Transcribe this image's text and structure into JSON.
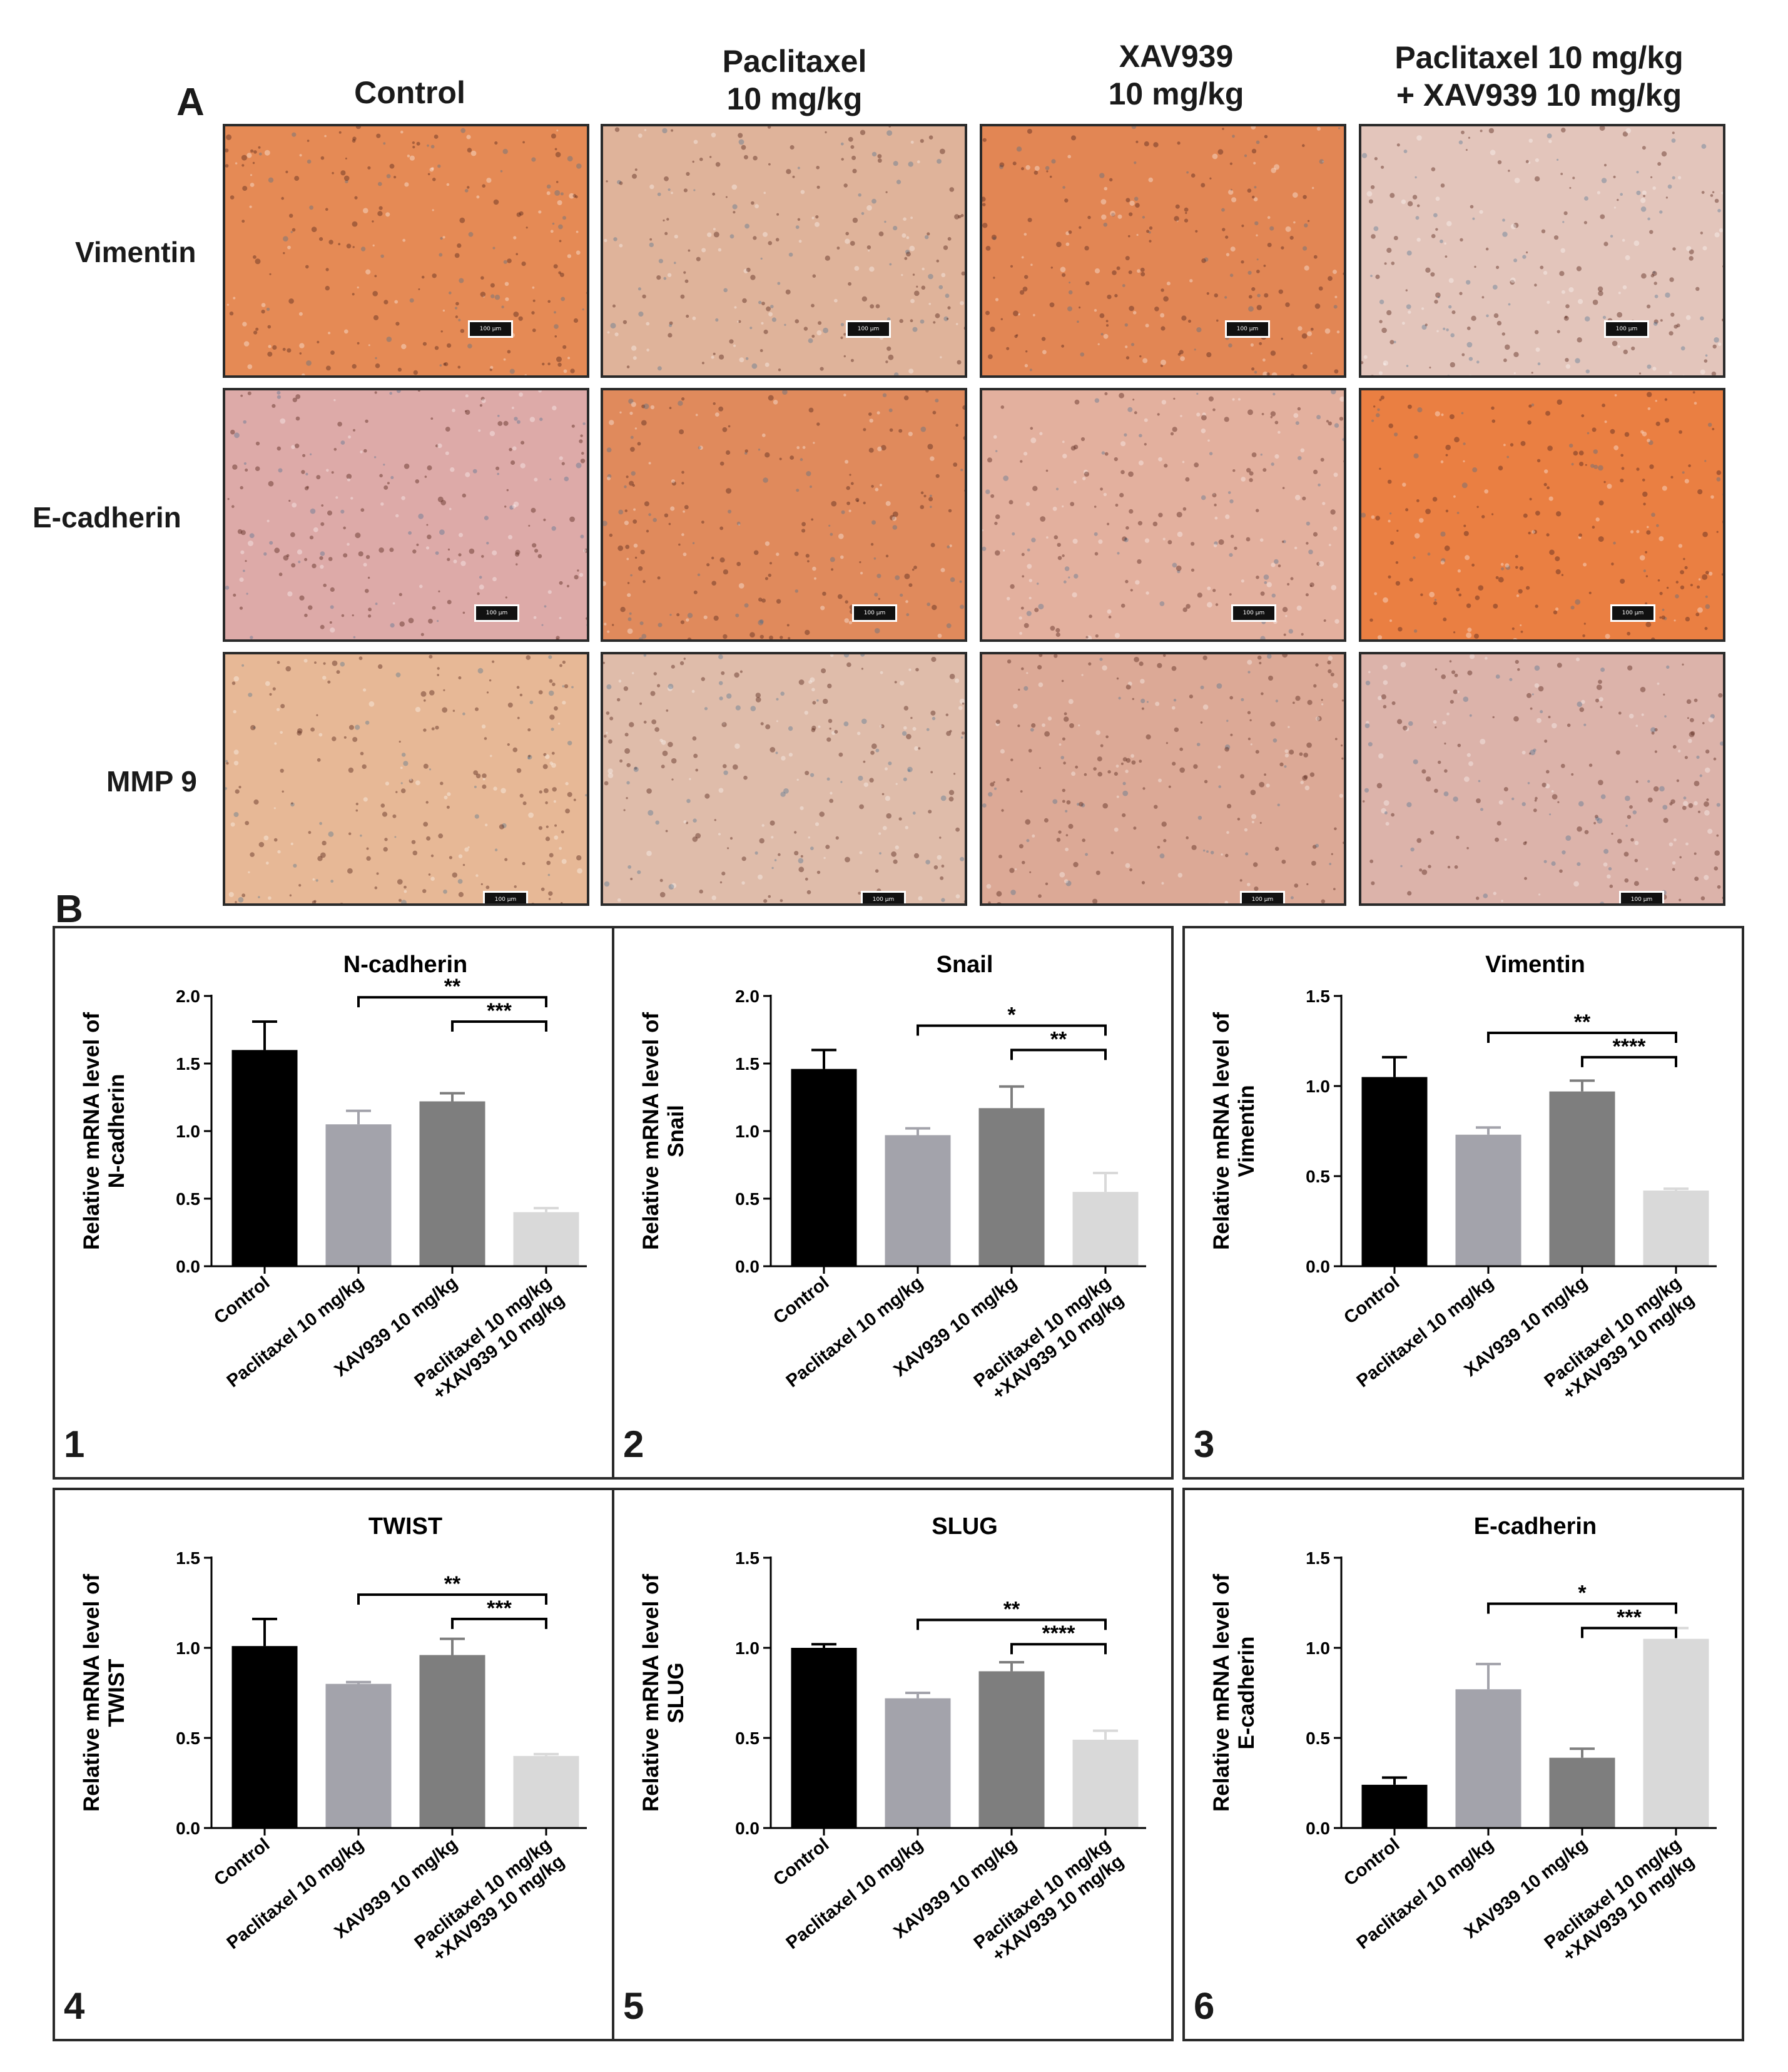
{
  "panel_a": {
    "letter": "A",
    "columns": [
      "Control",
      "Paclitaxel\n10 mg/kg",
      "XAV939\n10 mg/kg",
      "Paclitaxel 10 mg/kg\n+ XAV939 10 mg/kg"
    ],
    "rows": [
      "Vimentin",
      "E-cadherin",
      "MMP 9"
    ],
    "scale_label": "100 μm",
    "stain_colors": {
      "Vimentin": [
        "#e58a55",
        "#dfb39a",
        "#e28654",
        "#e3c5bb"
      ],
      "E-cadherin": [
        "#ddaaa8",
        "#e08a5c",
        "#e3b09e",
        "#ea7f42"
      ],
      "MMP 9": [
        "#e7b896",
        "#dfbcaa",
        "#dca996",
        "#dcb3aa"
      ]
    }
  },
  "panel_b": {
    "letter": "B"
  },
  "chart_data": [
    {
      "type": "bar",
      "number": "1",
      "title": "N-cadherin",
      "ylabel": "Relative mRNA level of\nN-cadherin",
      "categories": [
        "Control",
        "Paclitaxel 10 mg/kg",
        "XAV939 10 mg/kg",
        "Paclitaxel 10 mg/kg\n+XAV939 10 mg/kg"
      ],
      "values": [
        1.6,
        1.05,
        1.22,
        0.4
      ],
      "errors": [
        0.21,
        0.1,
        0.06,
        0.03
      ],
      "ylim": [
        0,
        2.0
      ],
      "yticks": [
        "0.0",
        "0.5",
        "1.0",
        "1.5",
        "2.0"
      ],
      "significance": [
        {
          "from": 1,
          "to": 3,
          "label": "**"
        },
        {
          "from": 2,
          "to": 3,
          "label": "***"
        }
      ]
    },
    {
      "type": "bar",
      "number": "2",
      "title": "Snail",
      "ylabel": "Relative mRNA level of\nSnail",
      "categories": [
        "Control",
        "Paclitaxel 10 mg/kg",
        "XAV939 10 mg/kg",
        "Paclitaxel 10 mg/kg\n+XAV939 10 mg/kg"
      ],
      "values": [
        1.46,
        0.97,
        1.17,
        0.55
      ],
      "errors": [
        0.14,
        0.05,
        0.16,
        0.14
      ],
      "ylim": [
        0,
        2.0
      ],
      "yticks": [
        "0.0",
        "0.5",
        "1.0",
        "1.5",
        "2.0"
      ],
      "significance": [
        {
          "from": 1,
          "to": 3,
          "label": "*"
        },
        {
          "from": 2,
          "to": 3,
          "label": "**"
        }
      ]
    },
    {
      "type": "bar",
      "number": "3",
      "title": "Vimentin",
      "ylabel": "Relative mRNA level of\nVimentin",
      "categories": [
        "Control",
        "Paclitaxel 10 mg/kg",
        "XAV939 10 mg/kg",
        "Paclitaxel 10 mg/kg\n+XAV939 10 mg/kg"
      ],
      "values": [
        1.05,
        0.73,
        0.97,
        0.42
      ],
      "errors": [
        0.11,
        0.04,
        0.06,
        0.01
      ],
      "ylim": [
        0,
        1.5
      ],
      "yticks": [
        "0.0",
        "0.5",
        "1.0",
        "1.5"
      ],
      "significance": [
        {
          "from": 1,
          "to": 3,
          "label": "**"
        },
        {
          "from": 2,
          "to": 3,
          "label": "****"
        }
      ]
    },
    {
      "type": "bar",
      "number": "4",
      "title": "TWIST",
      "ylabel": "Relative mRNA level of\nTWIST",
      "categories": [
        "Control",
        "Paclitaxel 10 mg/kg",
        "XAV939 10 mg/kg",
        "Paclitaxel 10 mg/kg\n+XAV939 10 mg/kg"
      ],
      "values": [
        1.01,
        0.8,
        0.96,
        0.4
      ],
      "errors": [
        0.15,
        0.01,
        0.09,
        0.01
      ],
      "ylim": [
        0,
        1.5
      ],
      "yticks": [
        "0.0",
        "0.5",
        "1.0",
        "1.5"
      ],
      "significance": [
        {
          "from": 1,
          "to": 3,
          "label": "**"
        },
        {
          "from": 2,
          "to": 3,
          "label": "***"
        }
      ]
    },
    {
      "type": "bar",
      "number": "5",
      "title": "SLUG",
      "ylabel": "Relative mRNA level of\nSLUG",
      "categories": [
        "Control",
        "Paclitaxel 10 mg/kg",
        "XAV939 10 mg/kg",
        "Paclitaxel 10 mg/kg\n+XAV939 10 mg/kg"
      ],
      "values": [
        1.0,
        0.72,
        0.87,
        0.49
      ],
      "errors": [
        0.02,
        0.03,
        0.05,
        0.05
      ],
      "ylim": [
        0,
        1.5
      ],
      "yticks": [
        "0.0",
        "0.5",
        "1.0",
        "1.5"
      ],
      "significance": [
        {
          "from": 1,
          "to": 3,
          "label": "**"
        },
        {
          "from": 2,
          "to": 3,
          "label": "****"
        }
      ]
    },
    {
      "type": "bar",
      "number": "6",
      "title": "E-cadherin",
      "ylabel": "Relative mRNA level of\nE-cadherin",
      "categories": [
        "Control",
        "Paclitaxel 10 mg/kg",
        "XAV939 10 mg/kg",
        "Paclitaxel 10 mg/kg\n+XAV939 10 mg/kg"
      ],
      "values": [
        0.24,
        0.77,
        0.39,
        1.05
      ],
      "errors": [
        0.04,
        0.14,
        0.05,
        0.06
      ],
      "ylim": [
        0,
        1.5
      ],
      "yticks": [
        "0.0",
        "0.5",
        "1.0",
        "1.5"
      ],
      "significance": [
        {
          "from": 1,
          "to": 3,
          "label": "*"
        },
        {
          "from": 2,
          "to": 3,
          "label": "***"
        }
      ]
    }
  ],
  "bar_colors": [
    "#000000",
    "#a3a3ab",
    "#7e7e7e",
    "#d9d9d9"
  ]
}
